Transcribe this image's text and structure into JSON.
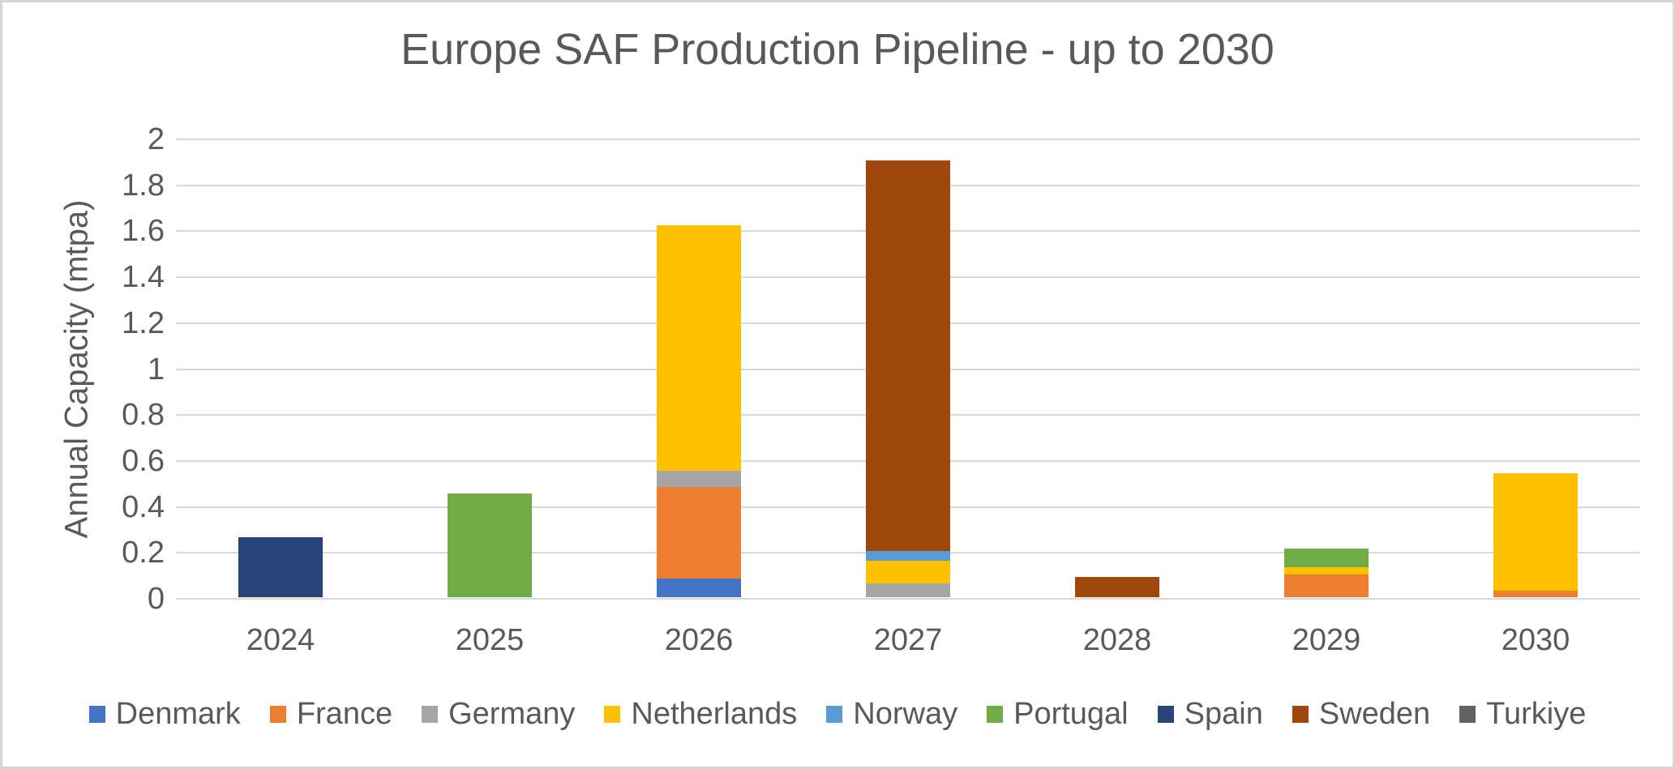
{
  "style": {
    "background": "#FFFFFF",
    "frame_border_color": "#D6D6D6",
    "text_color": "#595959",
    "gridline_color": "#D9D9D9"
  },
  "chart_data": {
    "type": "bar",
    "stacked": true,
    "title": "Europe SAF Production Pipeline - up to 2030",
    "xlabel": "",
    "ylabel": "Annual Capacity (mtpa)",
    "ylim": [
      0,
      2
    ],
    "ytick_step": 0.2,
    "ytick_labels": [
      "0",
      "0.2",
      "0.4",
      "0.6",
      "0.8",
      "1",
      "1.2",
      "1.4",
      "1.6",
      "1.8",
      "2"
    ],
    "grid": true,
    "legend_position": "bottom",
    "categories": [
      "2024",
      "2025",
      "2026",
      "2027",
      "2028",
      "2029",
      "2030"
    ],
    "series": [
      {
        "name": "Denmark",
        "color": "#4472C4",
        "values": [
          0,
          0,
          0.08,
          0,
          0,
          0,
          0
        ]
      },
      {
        "name": "France",
        "color": "#ED7D31",
        "values": [
          0,
          0,
          0.4,
          0,
          0,
          0.1,
          0.03
        ]
      },
      {
        "name": "Germany",
        "color": "#A5A5A5",
        "values": [
          0,
          0,
          0.07,
          0.06,
          0,
          0,
          0
        ]
      },
      {
        "name": "Netherlands",
        "color": "#FFC000",
        "values": [
          0,
          0,
          1.07,
          0.1,
          0,
          0.03,
          0.51
        ]
      },
      {
        "name": "Norway",
        "color": "#5B9BD5",
        "values": [
          0,
          0,
          0,
          0.04,
          0,
          0,
          0
        ]
      },
      {
        "name": "Portugal",
        "color": "#70AD47",
        "values": [
          0,
          0.45,
          0,
          0,
          0,
          0.08,
          0
        ]
      },
      {
        "name": "Spain",
        "color": "#264478",
        "values": [
          0.26,
          0,
          0,
          0,
          0,
          0,
          0
        ]
      },
      {
        "name": "Sweden",
        "color": "#9E480E",
        "values": [
          0,
          0,
          0,
          1.7,
          0.09,
          0,
          0
        ]
      },
      {
        "name": "Turkiye",
        "color": "#636363",
        "values": [
          0,
          0,
          0,
          0,
          0,
          0,
          0
        ]
      }
    ],
    "totals_by_category": [
      0.26,
      0.45,
      1.62,
      1.9,
      0.09,
      0.21,
      0.54
    ]
  }
}
